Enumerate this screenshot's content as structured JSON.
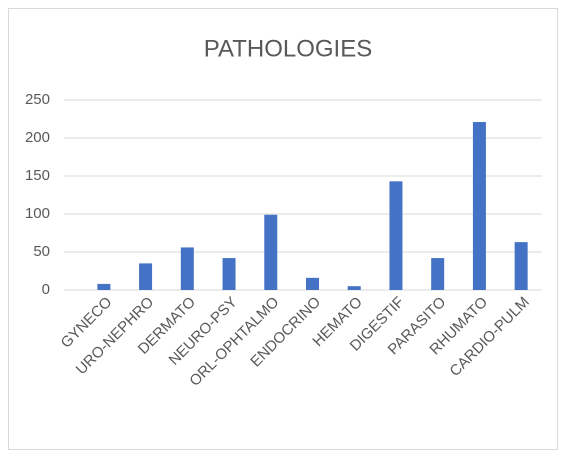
{
  "chart_data": {
    "type": "bar",
    "title": "PATHOLOGIES",
    "categories": [
      "GYNECO",
      "URO-NEPHRO",
      "DERMATO",
      "NEURO-PSY",
      "ORL-OPHTALMO",
      "ENDOCRINO",
      "HEMATO",
      "DIGESTIF",
      "PARASITO",
      "RHUMATO",
      "CARDIO-PULM"
    ],
    "values": [
      8,
      35,
      56,
      42,
      99,
      16,
      5,
      143,
      42,
      221,
      63
    ],
    "color": "#4472c4",
    "ylim": [
      0,
      250
    ],
    "yticks": [
      0,
      50,
      100,
      150,
      200,
      250
    ],
    "grid": true
  }
}
